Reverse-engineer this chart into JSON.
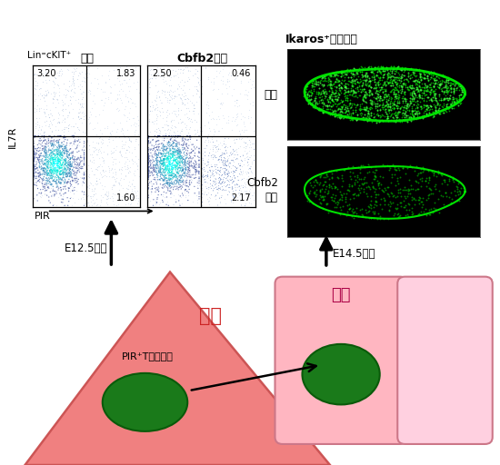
{
  "label_normal": "正常",
  "label_cbfb2_title": "Cbfb2欠損",
  "label_cbfb2_side1": "Cbfb2",
  "label_cbfb2_side2": "欠損",
  "label_lin_ckit": "Lin⁼cKIT⁺",
  "label_il7r": "IL7R",
  "label_pir": "PIR",
  "label_e125": "E12.5肝臓",
  "label_e145": "E14.5胸腕",
  "label_liver": "肝臓",
  "label_thymus": "胸腕",
  "label_pir_cells": "PIR⁺T前駆細胞",
  "label_ikaros": "Ikaros⁺血球細胞",
  "quad_normal_tl": "3.20",
  "quad_normal_tr": "1.83",
  "quad_normal_bl": "1.60",
  "quad_cbfb2_tl": "2.50",
  "quad_cbfb2_tr": "0.46",
  "quad_cbfb2_bl": "2.17",
  "bg_color": "#ffffff",
  "liver_color": "#f08080",
  "liver_edge_color": "#cc5555",
  "thymus_color": "#ffb6c1",
  "thymus_edge_color": "#cc7788",
  "thymus2_color": "#ffd0e0",
  "green_dark": "#1a7a1a",
  "green_edge": "#0a5a0a",
  "liver_label_color": "#cc2222",
  "thymus_label_color": "#aa0044"
}
